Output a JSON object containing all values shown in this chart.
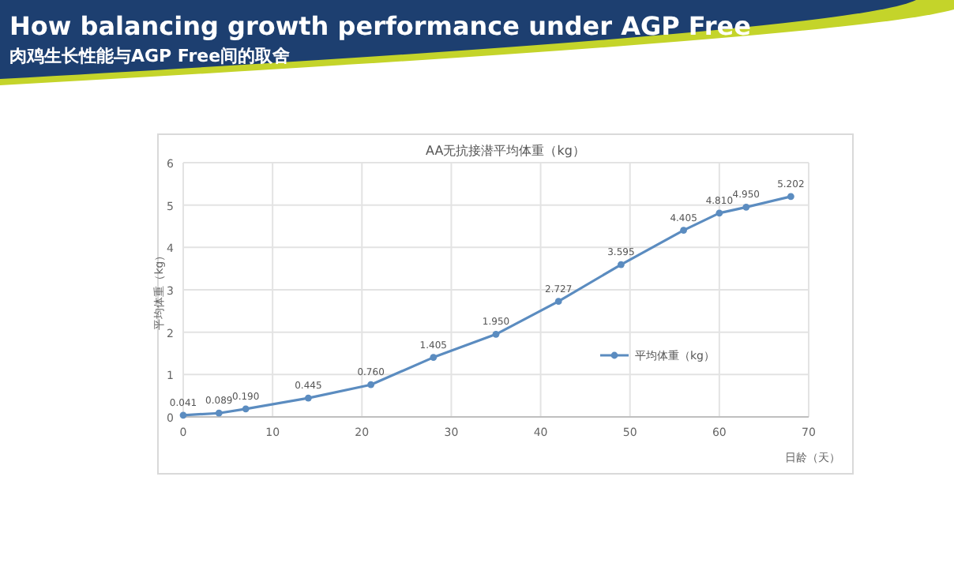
{
  "chart_data": {
    "type": "line",
    "title": "How balancing growth performance under AGP Free",
    "subtitle": "肉鸡生长性能与AGP Free间的取舍",
    "annotations": [
      "AA无抗接潜平均体重（kg）"
    ],
    "xlabel": "日龄（天）",
    "ylabel": "平均体重（kg）",
    "x": [
      0,
      4,
      7,
      14,
      21,
      28,
      35,
      42,
      49,
      56,
      60,
      63,
      68
    ],
    "series": [
      {
        "name": "平均体重（kg）",
        "color": "#5b8cc0",
        "values": [
          0.041,
          0.089,
          0.19,
          0.445,
          0.76,
          1.405,
          1.95,
          2.727,
          3.595,
          4.405,
          4.81,
          4.95,
          5.202
        ],
        "value_labels": [
          "0.041",
          "0.089",
          "0.190",
          "0.445",
          "0.760",
          "1.405",
          "1.950",
          "2.727",
          "3.595",
          "4.405",
          "4.810",
          "4.950",
          "5.202"
        ]
      }
    ],
    "xlim": [
      0,
      70
    ],
    "xticks": [
      0,
      10,
      20,
      30,
      40,
      50,
      60,
      70
    ],
    "ylim": [
      0,
      6
    ],
    "yticks": [
      0,
      1,
      2,
      3,
      4,
      5,
      6
    ],
    "grid": true,
    "legend": "right",
    "marker": "circle",
    "line_style": "solid"
  }
}
